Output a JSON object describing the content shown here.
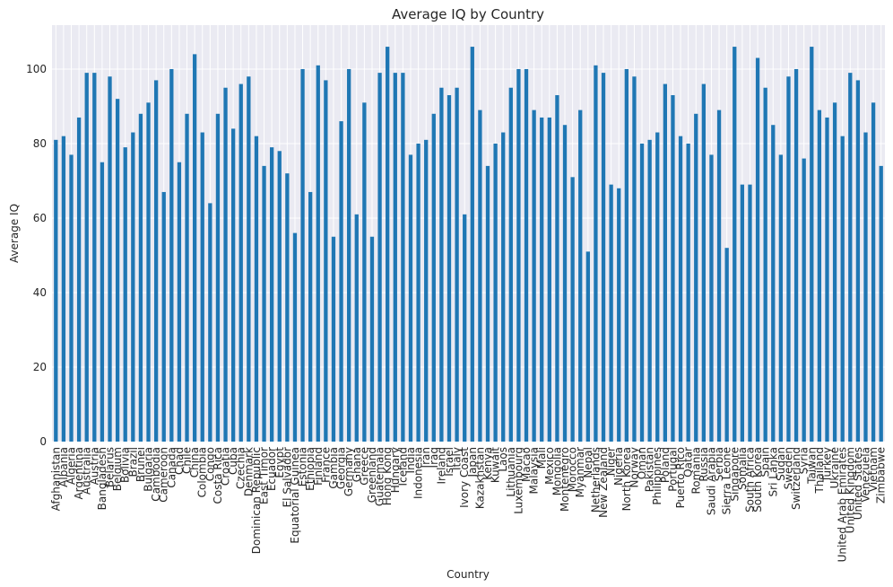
{
  "chart_data": {
    "type": "bar",
    "title": "Average IQ by Country",
    "x_label": "Country",
    "y_label": "Average IQ",
    "categories": [
      "Afghanistan",
      "Albania",
      "Algeria",
      "Argentina",
      "Australia",
      "Austria",
      "Bangladesh",
      "Belarus",
      "Belgium",
      "Bolivia",
      "Brazil",
      "Brunei",
      "Bulgaria",
      "Cambodia",
      "Cameroon",
      "Canada",
      "Chad",
      "Chile",
      "China",
      "Colombia",
      "Congo",
      "Costa Rica",
      "Croatia",
      "Cuba",
      "Czechia",
      "Denmark",
      "Dominican Republic",
      "East Timor",
      "Ecuador",
      "Egypt",
      "El Salvador",
      "Equatorial Guinea",
      "Estonia",
      "Ethiopia",
      "Finland",
      "France",
      "Gambia",
      "Georgia",
      "Germany",
      "Ghana",
      "Greece",
      "Greenland",
      "Guatemala",
      "Hong Kong",
      "Hungary",
      "Iceland",
      "India",
      "Indonesia",
      "Iran",
      "Iraq",
      "Ireland",
      "Israel",
      "Italy",
      "Ivory Coast",
      "Japan",
      "Kazakhstan",
      "Kenya",
      "Kuwait",
      "Laos",
      "Lithuania",
      "Luxembourg",
      "Macao",
      "Malaysia",
      "Mali",
      "Mexico",
      "Mongolia",
      "Montenegro",
      "Morocco",
      "Myanmar",
      "Nepal",
      "Netherlands",
      "New Zealand",
      "Niger",
      "Nigeria",
      "North Korea",
      "Norway",
      "Oman",
      "Pakistan",
      "Philippines",
      "Poland",
      "Portugal",
      "Puerto Rico",
      "Qatar",
      "Romania",
      "Russia",
      "Saudi Arabia",
      "Serbia",
      "Sierra Leone",
      "Singapore",
      "Somalia",
      "South Africa",
      "South Korea",
      "Spain",
      "Sri Lanka",
      "Sudan",
      "Sweden",
      "Switzerland",
      "Syria",
      "Taiwan",
      "Thailand",
      "Turkey",
      "Ukraine",
      "United Arab Emirates",
      "United Kingdom",
      "United States",
      "Venezuela",
      "Vietnam",
      "Zimbabwe"
    ],
    "values": [
      81,
      82,
      77,
      87,
      99,
      99,
      75,
      98,
      92,
      79,
      83,
      88,
      91,
      97,
      67,
      100,
      75,
      88,
      104,
      83,
      64,
      88,
      95,
      84,
      96,
      98,
      82,
      74,
      79,
      78,
      72,
      56,
      100,
      67,
      101,
      97,
      55,
      86,
      100,
      61,
      91,
      55,
      99,
      106,
      99,
      99,
      77,
      80,
      81,
      88,
      95,
      93,
      95,
      61,
      106,
      89,
      74,
      80,
      83,
      95,
      100,
      100,
      89,
      87,
      87,
      93,
      85,
      71,
      89,
      51,
      101,
      99,
      69,
      68,
      100,
      98,
      80,
      81,
      83,
      96,
      93,
      82,
      80,
      88,
      96,
      77,
      89,
      52,
      106,
      69,
      69,
      103,
      95,
      85,
      77,
      98,
      100,
      76,
      106,
      89,
      87,
      91,
      82,
      99,
      97,
      83,
      91,
      74
    ],
    "color": "#1f77b4",
    "ylim": [
      0,
      111.8
    ],
    "yticks": [
      0,
      20,
      40,
      60,
      80,
      100
    ],
    "grid": true
  }
}
